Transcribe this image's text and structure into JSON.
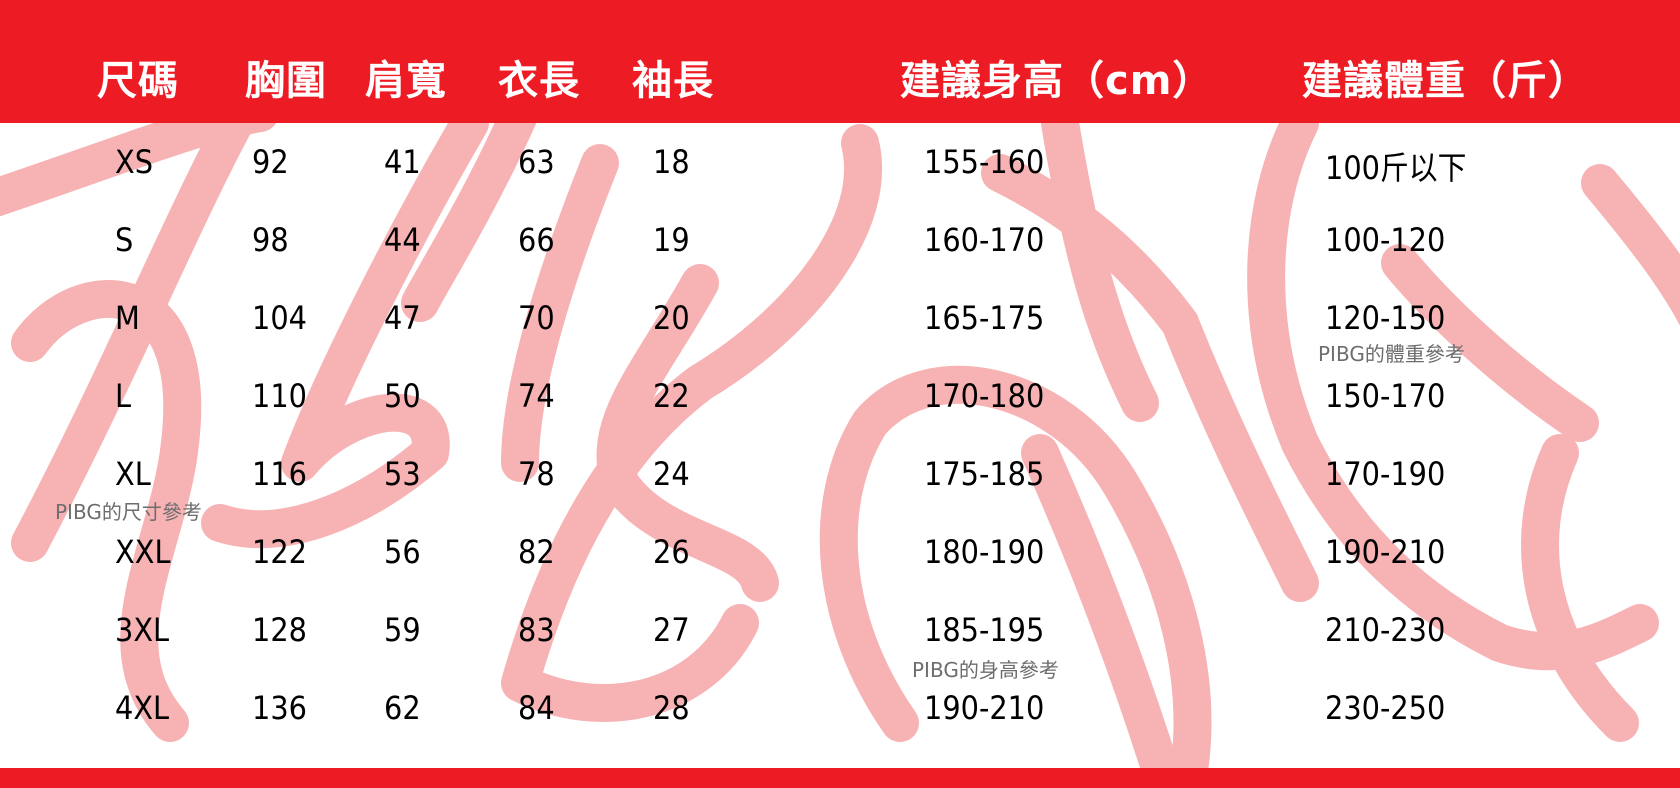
{
  "colors": {
    "accent": "#ED1C24",
    "watermark": "#F7B2B4",
    "text": "#000000",
    "note": "#6D6D6D"
  },
  "headers": {
    "size": "尺碼",
    "chest": "胸圍",
    "shoulder": "肩寬",
    "length": "衣長",
    "sleeve": "袖長",
    "height": "建議身高（cm）",
    "weight": "建議體重（斤）"
  },
  "rows": [
    {
      "size": "XS",
      "chest": "92",
      "shoulder": "41",
      "length": "63",
      "sleeve": "18",
      "height": "155-160",
      "weight": "100斤以下"
    },
    {
      "size": "S",
      "chest": "98",
      "shoulder": "44",
      "length": "66",
      "sleeve": "19",
      "height": "160-170",
      "weight": "100-120"
    },
    {
      "size": "M",
      "chest": "104",
      "shoulder": "47",
      "length": "70",
      "sleeve": "20",
      "height": "165-175",
      "weight": "120-150"
    },
    {
      "size": "L",
      "chest": "110",
      "shoulder": "50",
      "length": "74",
      "sleeve": "22",
      "height": "170-180",
      "weight": "150-170"
    },
    {
      "size": "XL",
      "chest": "116",
      "shoulder": "53",
      "length": "78",
      "sleeve": "24",
      "height": "175-185",
      "weight": "170-190"
    },
    {
      "size": "XXL",
      "chest": "122",
      "shoulder": "56",
      "length": "82",
      "sleeve": "26",
      "height": "180-190",
      "weight": "190-210"
    },
    {
      "size": "3XL",
      "chest": "128",
      "shoulder": "59",
      "length": "83",
      "sleeve": "27",
      "height": "185-195",
      "weight": "210-230"
    },
    {
      "size": "4XL",
      "chest": "136",
      "shoulder": "62",
      "length": "84",
      "sleeve": "28",
      "height": "190-210",
      "weight": "230-250"
    }
  ],
  "notes": {
    "size_ref": "PIBG的尺寸參考",
    "height_ref": "PIBG的身高參考",
    "weight_ref": "PIBG的體重參考"
  }
}
